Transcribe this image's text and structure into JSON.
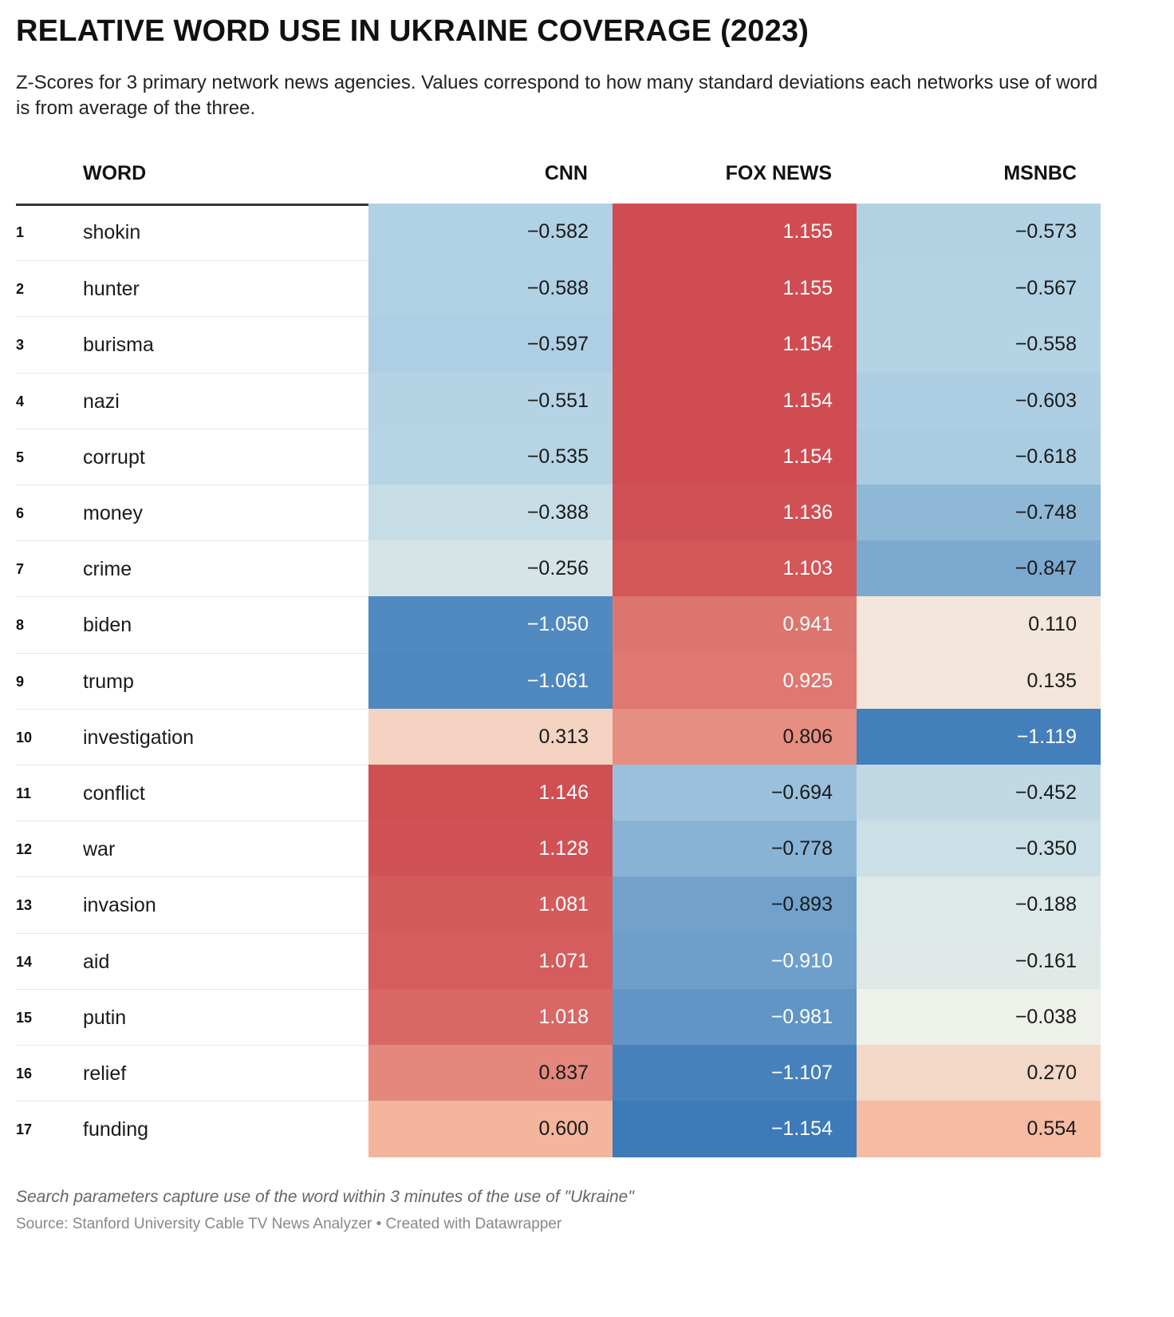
{
  "title": "RELATIVE WORD USE IN UKRAINE COVERAGE (2023)",
  "subtitle": "Z-Scores for 3 primary network news agencies. Values correspond to how many standard deviations each networks use of word is from average of the three.",
  "note": "Search parameters capture use of the word within 3 minutes of the use of \"Ukraine\"",
  "source": "Source: Stanford University Cable TV News Analyzer • Created with Datawrapper",
  "chart_data": {
    "type": "table",
    "columns": [
      "WORD",
      "CNN",
      "FOX NEWS",
      "MSNBC"
    ],
    "rows": [
      {
        "rank": "1",
        "word": "shokin",
        "CNN": -0.582,
        "FOX NEWS": 1.155,
        "MSNBC": -0.573
      },
      {
        "rank": "2",
        "word": "hunter",
        "CNN": -0.588,
        "FOX NEWS": 1.155,
        "MSNBC": -0.567
      },
      {
        "rank": "3",
        "word": "burisma",
        "CNN": -0.597,
        "FOX NEWS": 1.154,
        "MSNBC": -0.558
      },
      {
        "rank": "4",
        "word": "nazi",
        "CNN": -0.551,
        "FOX NEWS": 1.154,
        "MSNBC": -0.603
      },
      {
        "rank": "5",
        "word": "corrupt",
        "CNN": -0.535,
        "FOX NEWS": 1.154,
        "MSNBC": -0.618
      },
      {
        "rank": "6",
        "word": "money",
        "CNN": -0.388,
        "FOX NEWS": 1.136,
        "MSNBC": -0.748
      },
      {
        "rank": "7",
        "word": "crime",
        "CNN": -0.256,
        "FOX NEWS": 1.103,
        "MSNBC": -0.847
      },
      {
        "rank": "8",
        "word": "biden",
        "CNN": -1.05,
        "FOX NEWS": 0.941,
        "MSNBC": 0.11
      },
      {
        "rank": "9",
        "word": "trump",
        "CNN": -1.061,
        "FOX NEWS": 0.925,
        "MSNBC": 0.135
      },
      {
        "rank": "10",
        "word": "investigation",
        "CNN": 0.313,
        "FOX NEWS": 0.806,
        "MSNBC": -1.119
      },
      {
        "rank": "11",
        "word": "conflict",
        "CNN": 1.146,
        "FOX NEWS": -0.694,
        "MSNBC": -0.452
      },
      {
        "rank": "12",
        "word": "war",
        "CNN": 1.128,
        "FOX NEWS": -0.778,
        "MSNBC": -0.35
      },
      {
        "rank": "13",
        "word": "invasion",
        "CNN": 1.081,
        "FOX NEWS": -0.893,
        "MSNBC": -0.188
      },
      {
        "rank": "14",
        "word": "aid",
        "CNN": 1.071,
        "FOX NEWS": -0.91,
        "MSNBC": -0.161
      },
      {
        "rank": "15",
        "word": "putin",
        "CNN": 1.018,
        "FOX NEWS": -0.981,
        "MSNBC": -0.038
      },
      {
        "rank": "16",
        "word": "relief",
        "CNN": 0.837,
        "FOX NEWS": -1.107,
        "MSNBC": 0.27
      },
      {
        "rank": "17",
        "word": "funding",
        "CNN": 0.6,
        "FOX NEWS": -1.154,
        "MSNBC": 0.554
      }
    ],
    "color_scale": {
      "type": "diverging",
      "negative_color": "#3c7ab8",
      "neutral_color": "#f2f2ea",
      "positive_color": "#d04b50",
      "domain": [
        -1.155,
        1.155
      ]
    }
  }
}
